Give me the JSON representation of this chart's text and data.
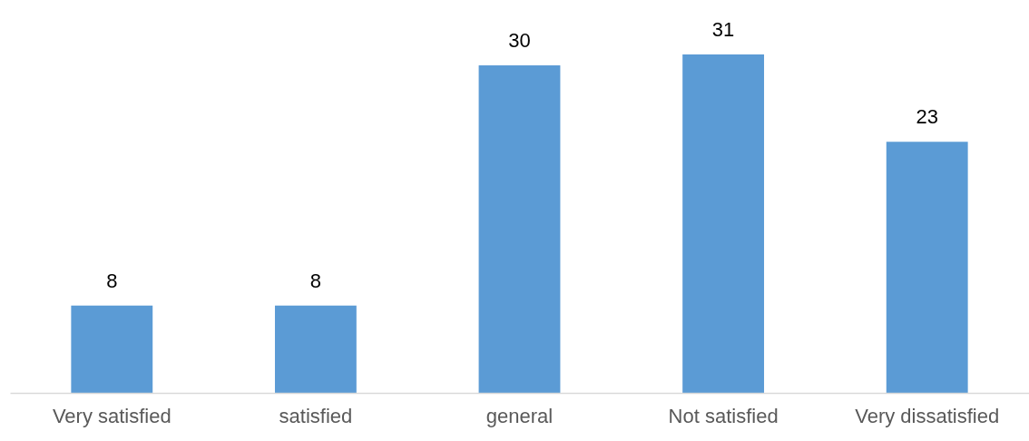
{
  "chart_data": {
    "type": "bar",
    "categories": [
      "Very satisfied",
      "satisfied",
      "general",
      "Not satisfied",
      "Very dissatisfied"
    ],
    "values": [
      8,
      8,
      30,
      31,
      23
    ],
    "color": "#5b9bd5",
    "data_labels": true
  }
}
